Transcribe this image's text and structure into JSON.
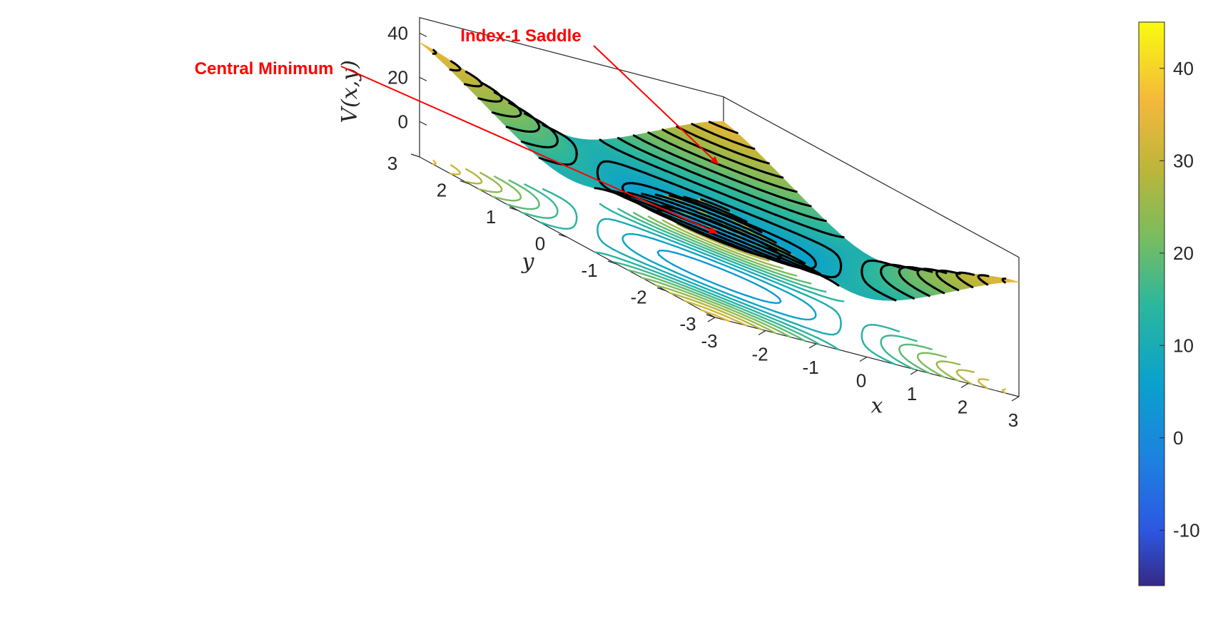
{
  "chart_data": {
    "type": "surface",
    "function": "V(x, y)",
    "x_range": [
      -3,
      3
    ],
    "y_range": [
      -3,
      3
    ],
    "z_range": [
      -16,
      45
    ],
    "zlabel": "V(x,y)",
    "xlabel": "x",
    "ylabel": "y",
    "x_ticks": [
      "-3",
      "-2",
      "-1",
      "0",
      "1",
      "2",
      "3"
    ],
    "y_ticks": [
      "-3",
      "-2",
      "-1",
      "0",
      "1",
      "2",
      "3"
    ],
    "z_ticks": [
      "0",
      "20",
      "40"
    ],
    "colorbar": {
      "ticks": [
        "-10",
        "0",
        "10",
        "20",
        "30",
        "40"
      ],
      "tick_values": [
        -10,
        0,
        10,
        20,
        30,
        40
      ],
      "range": [
        -16,
        45
      ],
      "colormap": "parula"
    },
    "features": [
      {
        "type": "minimum",
        "x": 0,
        "y": 0,
        "z": 2
      },
      {
        "type": "saddle",
        "x": 2,
        "y": 2,
        "z": 24
      },
      {
        "type": "saddle",
        "x": -2,
        "y": 2,
        "z": 24
      },
      {
        "type": "saddle",
        "x": 2,
        "y": -2,
        "z": 24
      },
      {
        "type": "saddle",
        "x": -2,
        "y": -2,
        "z": 24
      }
    ],
    "annotations": [
      {
        "label": "Central Minimum",
        "color": "#ff0000",
        "target": "minimum"
      },
      {
        "label": "Index-1 Saddle",
        "color": "#ff0000",
        "target": "saddle"
      }
    ],
    "contour_surface_color": "#000000",
    "grid": false
  }
}
